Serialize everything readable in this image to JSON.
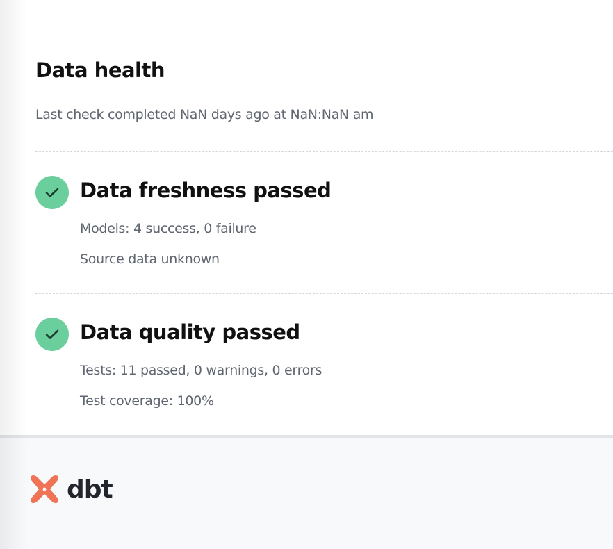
{
  "header": {
    "title": "Data health",
    "subtitle": "Last check completed NaN days ago at NaN:NaN am"
  },
  "sections": [
    {
      "icon": "check-circle-icon",
      "title": "Data freshness passed",
      "lines": [
        "Models: 4 success, 0 failure",
        "Source data unknown"
      ]
    },
    {
      "icon": "check-circle-icon",
      "title": "Data quality passed",
      "lines": [
        "Tests: 11 passed, 0 warnings, 0 errors",
        "Test coverage: 100%"
      ]
    }
  ],
  "footer": {
    "logo_text": "dbt"
  },
  "colors": {
    "success": "#6acf9d",
    "brand": "#ef7355"
  }
}
